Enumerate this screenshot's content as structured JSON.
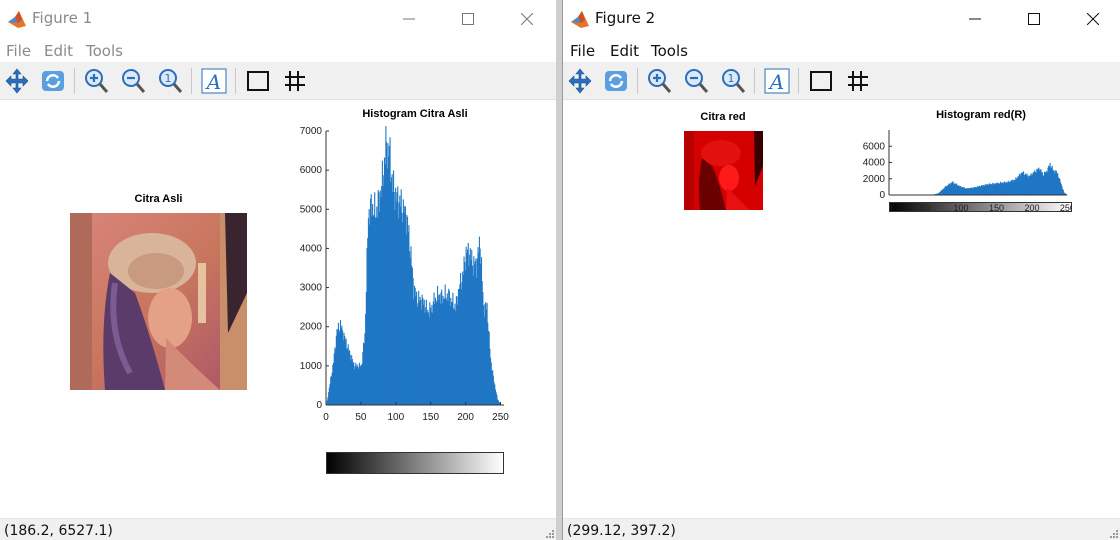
{
  "window1": {
    "title": "Figure 1",
    "menu": [
      "File",
      "Edit",
      "Tools"
    ],
    "status": "(186.2, 6527.1)",
    "image_title": "Citra Asli",
    "hist_title": "Histogram Citra Asli"
  },
  "window2": {
    "title": "Figure 2",
    "menu": [
      "File",
      "Edit",
      "Tools"
    ],
    "status": "(299.12, 397.2)",
    "image_title": "Citra red",
    "hist_title": "Histogram red(R)"
  },
  "toolbar_icons": [
    "pan-icon",
    "rotate-icon",
    "zoom-in-icon",
    "zoom-out-icon",
    "zoom-reset-icon",
    "insert-text-icon",
    "insert-rectangle-icon",
    "grid-icon"
  ],
  "colors": {
    "bar": "#1f77c4",
    "red_image": "#d40000"
  },
  "chart_data": [
    {
      "type": "bar",
      "title": "Histogram Citra Asli",
      "xlim": [
        0,
        255
      ],
      "ylim": [
        0,
        7000
      ],
      "xticks": [
        0,
        50,
        100,
        150,
        200,
        250
      ],
      "yticks": [
        0,
        1000,
        2000,
        3000,
        4000,
        5000,
        6000,
        7000
      ],
      "x": [
        0,
        10,
        15,
        20,
        30,
        40,
        50,
        55,
        60,
        65,
        70,
        75,
        80,
        85,
        90,
        95,
        100,
        105,
        110,
        115,
        120,
        125,
        130,
        135,
        140,
        145,
        150,
        155,
        160,
        165,
        170,
        175,
        180,
        185,
        190,
        195,
        200,
        205,
        210,
        215,
        220,
        225,
        230,
        235,
        240,
        245,
        250,
        255
      ],
      "values": [
        0,
        1100,
        1900,
        2050,
        1500,
        1000,
        1000,
        1800,
        4900,
        5100,
        4900,
        5200,
        5700,
        6600,
        6500,
        5600,
        5300,
        5200,
        5000,
        4800,
        4000,
        3000,
        2700,
        2700,
        2600,
        2400,
        2450,
        2700,
        2800,
        2750,
        2800,
        2800,
        2650,
        2500,
        3000,
        3300,
        3900,
        3900,
        3600,
        3600,
        4200,
        2500,
        2500,
        1200,
        600,
        150,
        0,
        0
      ],
      "colorbar": "gray"
    },
    {
      "type": "bar",
      "title": "Histogram red(R)",
      "xlim": [
        0,
        255
      ],
      "ylim": [
        0,
        8000
      ],
      "xticks": [
        0,
        50,
        100,
        150,
        200,
        250
      ],
      "yticks": [
        0,
        2000,
        4000,
        6000
      ],
      "x": [
        0,
        30,
        60,
        70,
        80,
        90,
        100,
        110,
        120,
        130,
        140,
        150,
        160,
        170,
        180,
        190,
        200,
        210,
        215,
        220,
        225,
        230,
        235,
        240,
        245,
        250,
        255
      ],
      "values": [
        0,
        0,
        0,
        200,
        1000,
        1600,
        1100,
        800,
        900,
        1100,
        1300,
        1400,
        1500,
        1600,
        1900,
        2800,
        2300,
        3000,
        3300,
        2500,
        2900,
        3800,
        3000,
        2800,
        1600,
        300,
        0
      ],
      "colorbar": "gray"
    }
  ]
}
